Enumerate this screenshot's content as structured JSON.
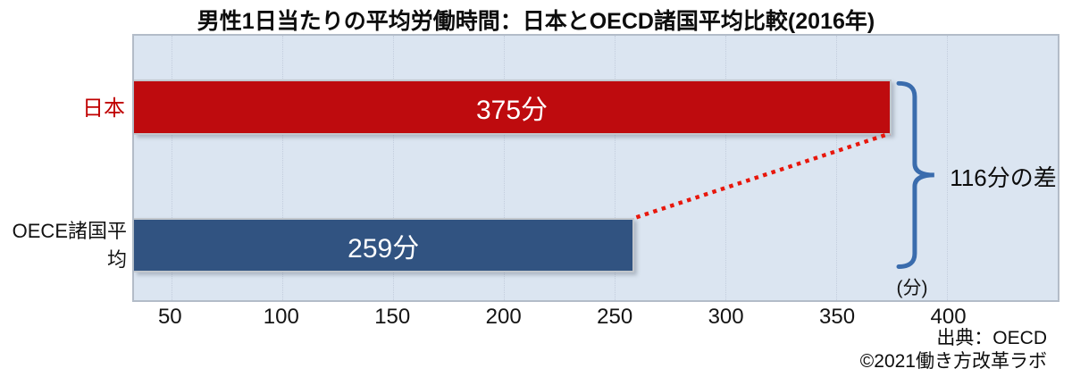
{
  "title": "男性1日当たりの平均労働時間：日本とOECD諸国平均比較(2016年)",
  "chart_data": {
    "type": "bar",
    "orientation": "horizontal",
    "title": "男性1日当たりの平均労働時間：日本とOECD諸国平均比較(2016年)",
    "categories": [
      "日本",
      "OECE諸国平均"
    ],
    "values": [
      375,
      259
    ],
    "bar_labels": [
      "375分",
      "259分"
    ],
    "bar_colors": [
      "#be0b0e",
      "#315381"
    ],
    "category_label_colors": [
      "#c00000",
      "#111111"
    ],
    "xaxis": {
      "ticks": [
        50,
        100,
        150,
        200,
        250,
        300,
        350,
        400
      ],
      "xlim": [
        33,
        450
      ],
      "unit_label": "(分)",
      "grid": true
    },
    "plot_background": "#dbe5f1",
    "annotation": {
      "text": "116分の差",
      "difference_minutes": 116,
      "bracket_color": "#3a6cad",
      "dotted_line_color": "#e8170c"
    },
    "legend": "none"
  },
  "footer": {
    "source": "出典：OECD",
    "copyright": "©2021働き方改革ラボ"
  }
}
